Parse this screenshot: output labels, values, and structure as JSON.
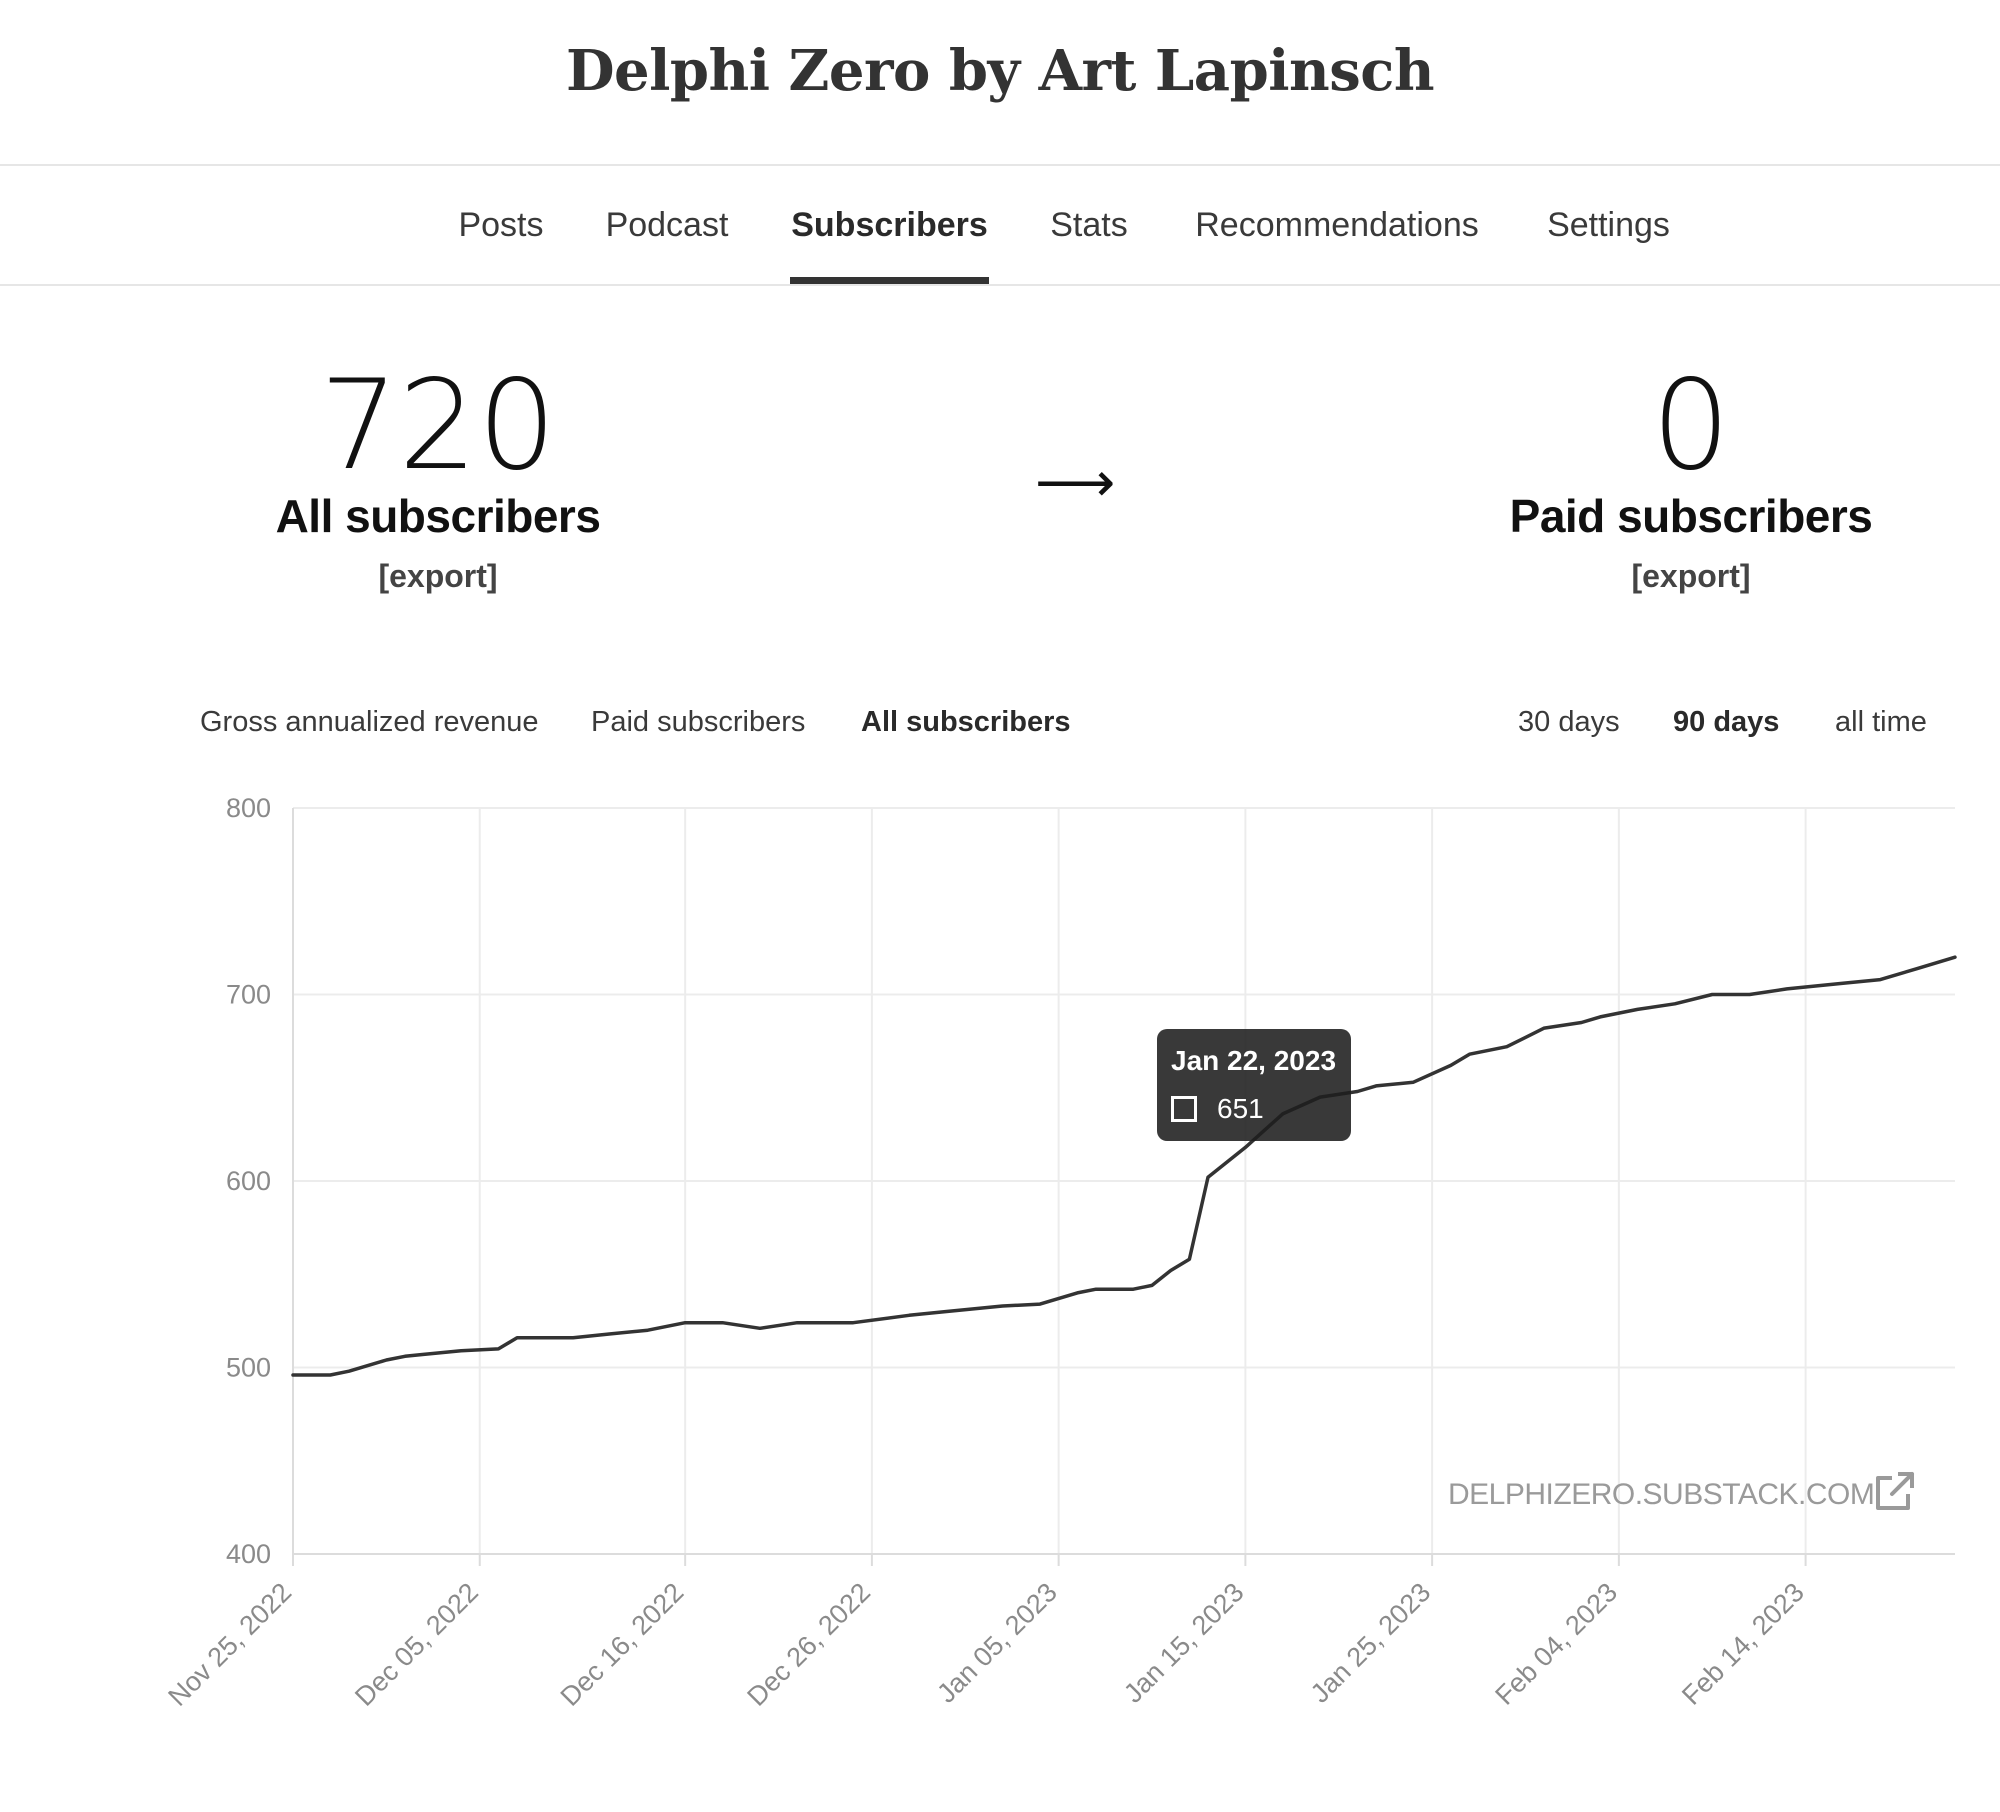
{
  "publication": {
    "title": "Delphi Zero by Art Lapinsch"
  },
  "nav": {
    "items": [
      {
        "label": "Posts",
        "active": false
      },
      {
        "label": "Podcast",
        "active": false
      },
      {
        "label": "Subscribers",
        "active": true
      },
      {
        "label": "Stats",
        "active": false
      },
      {
        "label": "Recommendations",
        "active": false
      },
      {
        "label": "Settings",
        "active": false
      }
    ]
  },
  "stats": {
    "all": {
      "value": "720",
      "label": "All subscribers",
      "export": "[export]"
    },
    "arrow": "⟶",
    "paid": {
      "value": "0",
      "label": "Paid subscribers",
      "export": "[export]"
    }
  },
  "metric_tabs": [
    {
      "label": "Gross annualized revenue",
      "active": false
    },
    {
      "label": "Paid subscribers",
      "active": false
    },
    {
      "label": "All subscribers",
      "active": true
    }
  ],
  "range_tabs": [
    {
      "label": "30 days",
      "active": false
    },
    {
      "label": "90 days",
      "active": true
    },
    {
      "label": "all time",
      "active": false
    }
  ],
  "tooltip": {
    "date": "Jan 22, 2023",
    "value": "651"
  },
  "watermark": {
    "text": "DELPHIZERO.SUBSTACK.COM",
    "icon": "external-link-icon"
  },
  "colors": {
    "line": "#333333",
    "grid": "#ececec",
    "tick": "#8a8a8a",
    "active_underline": "#333333"
  },
  "chart_data": {
    "type": "line",
    "ylim": [
      400,
      800
    ],
    "yticks": [
      400,
      500,
      600,
      700,
      800
    ],
    "xticks": [
      "Nov 25, 2022",
      "Dec 05, 2022",
      "Dec 16, 2022",
      "Dec 26, 2022",
      "Jan 05, 2023",
      "Jan 15, 2023",
      "Jan 25, 2023",
      "Feb 04, 2023",
      "Feb 14, 2023"
    ],
    "xlim": [
      "2022-11-25",
      "2023-02-22"
    ],
    "grid": true,
    "x": [
      "2022-11-25",
      "2022-11-27",
      "2022-11-28",
      "2022-11-30",
      "2022-12-01",
      "2022-12-02",
      "2022-12-04",
      "2022-12-06",
      "2022-12-07",
      "2022-12-10",
      "2022-12-12",
      "2022-12-14",
      "2022-12-16",
      "2022-12-18",
      "2022-12-20",
      "2022-12-22",
      "2022-12-23",
      "2022-12-25",
      "2022-12-28",
      "2022-12-30",
      "2023-01-02",
      "2023-01-04",
      "2023-01-06",
      "2023-01-07",
      "2023-01-09",
      "2023-01-10",
      "2023-01-11",
      "2023-01-12",
      "2023-01-13",
      "2023-01-15",
      "2023-01-17",
      "2023-01-19",
      "2023-01-21",
      "2023-01-22",
      "2023-01-24",
      "2023-01-26",
      "2023-01-27",
      "2023-01-29",
      "2023-01-31",
      "2023-02-02",
      "2023-02-03",
      "2023-02-05",
      "2023-02-07",
      "2023-02-09",
      "2023-02-11",
      "2023-02-13",
      "2023-02-16",
      "2023-02-18",
      "2023-02-20",
      "2023-02-22"
    ],
    "series": [
      {
        "values": [
          496,
          496,
          498,
          504,
          506,
          507,
          509,
          510,
          516,
          516,
          518,
          520,
          524,
          524,
          521,
          524,
          524,
          524,
          528,
          530,
          533,
          534,
          540,
          542,
          542,
          544,
          552,
          558,
          602,
          618,
          636,
          645,
          648,
          651,
          653,
          662,
          668,
          672,
          682,
          685,
          688,
          692,
          695,
          700,
          700,
          703,
          706,
          708,
          714,
          720
        ]
      }
    ]
  }
}
